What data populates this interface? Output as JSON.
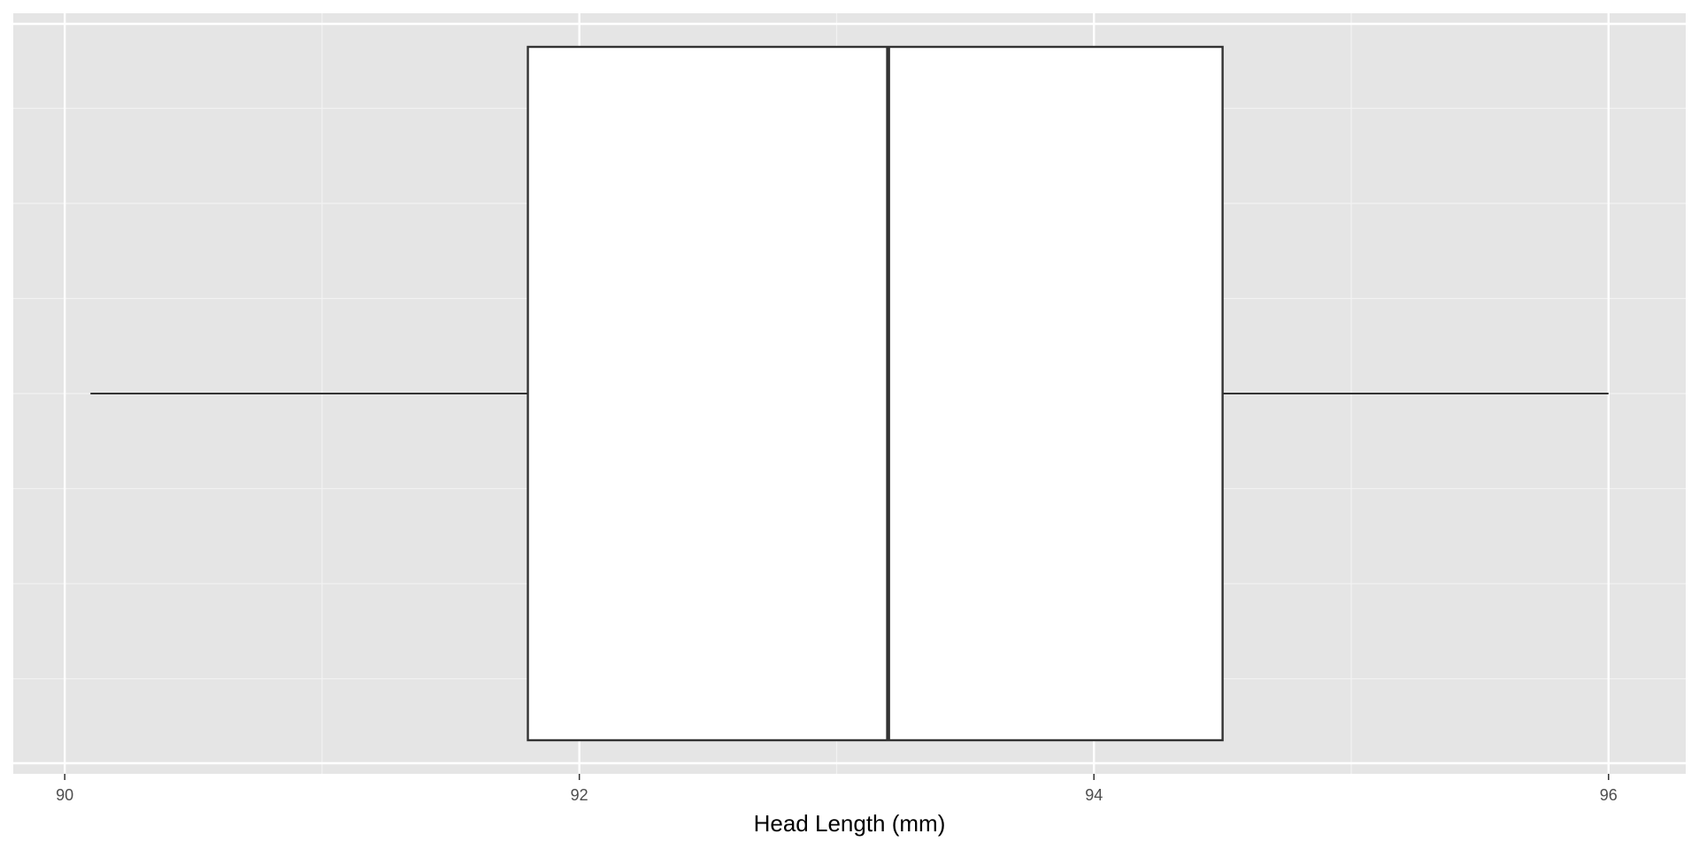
{
  "chart_data": {
    "type": "boxplot",
    "orientation": "horizontal",
    "title": "",
    "xlabel": "Head Length (mm)",
    "ylabel": "",
    "xlim": [
      89.8,
      96.3
    ],
    "x_ticks": [
      90,
      92,
      94,
      96
    ],
    "x_tick_labels": [
      "90",
      "92",
      "94",
      "96"
    ],
    "x_minor_ticks": [
      91,
      93,
      95
    ],
    "y_ticks_shown": false,
    "grid": true,
    "legend": "none",
    "series": [
      {
        "whisker_low": 90.1,
        "q1": 91.8,
        "median": 93.2,
        "q3": 94.5,
        "whisker_high": 96.0
      }
    ]
  },
  "colors": {
    "panel_background": "#e5e5e5",
    "grid_major": "#ffffff",
    "grid_minor": "#f2f2f2",
    "box_fill": "#ffffff",
    "box_stroke": "#333333",
    "tick_text": "#4d4d4d",
    "axis_title_text": "#000000"
  }
}
